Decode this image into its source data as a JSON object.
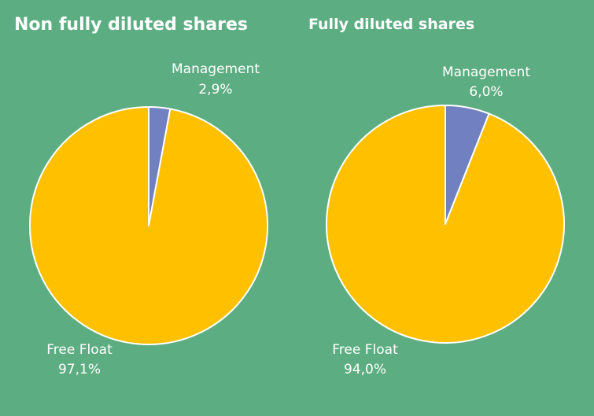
{
  "chart_data": [
    {
      "type": "pie",
      "title": "Non fully diluted shares",
      "series": [
        {
          "name": "Management",
          "value": 2.9,
          "label": "2,9%",
          "color": "#7080c0"
        },
        {
          "name": "Free Float",
          "value": 97.1,
          "label": "97,1%",
          "color": "#ffc000"
        }
      ]
    },
    {
      "type": "pie",
      "title": "Fully diluted shares",
      "series": [
        {
          "name": "Management",
          "value": 6.0,
          "label": "6,0%",
          "color": "#7080c0"
        },
        {
          "name": "Free Float",
          "value": 94.0,
          "label": "94,0%",
          "color": "#ffc000"
        }
      ]
    }
  ],
  "colors": {
    "background": "#5dad82",
    "slice_border": "#ffffff"
  }
}
